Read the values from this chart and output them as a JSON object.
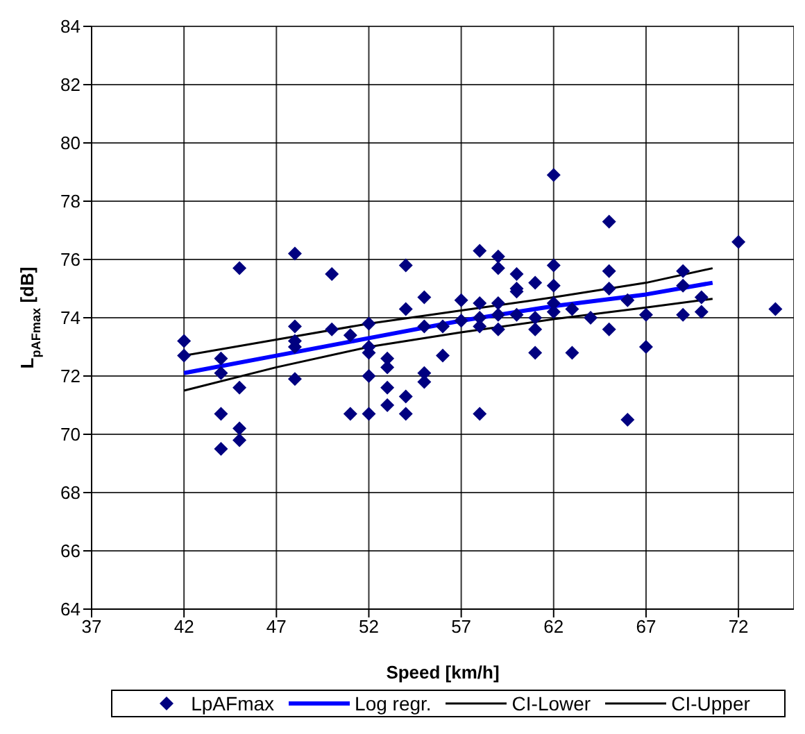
{
  "chart_data": {
    "type": "scatter",
    "xlabel": "Speed [km/h]",
    "ylabel": "L$_{pAFmax}$ [dB]",
    "xlim": [
      37,
      75
    ],
    "xticks": [
      37,
      42,
      47,
      52,
      57,
      62,
      67,
      72
    ],
    "ylim": [
      64,
      84
    ],
    "yticks": [
      64,
      66,
      68,
      70,
      72,
      74,
      76,
      78,
      80,
      82,
      84
    ],
    "grid": true,
    "legend": "bottom",
    "series": [
      {
        "name": "LpAFmax",
        "marker": "diamond",
        "color": "#000080",
        "x": [
          42,
          42,
          44,
          44,
          45,
          45,
          44,
          45,
          45,
          44,
          48,
          48,
          48,
          48,
          48,
          50,
          50,
          51,
          51,
          52,
          52,
          52,
          52,
          52,
          53,
          53,
          53,
          53,
          54,
          54,
          54,
          54,
          55,
          55,
          55,
          55,
          56,
          56,
          57,
          57,
          58,
          58,
          58,
          58,
          58,
          59,
          59,
          59,
          59,
          59,
          60,
          60,
          60,
          60,
          61,
          61,
          61,
          61,
          62,
          62,
          62,
          62,
          62,
          65,
          72,
          63,
          63,
          64,
          65,
          65,
          65,
          66,
          66,
          67,
          67,
          69,
          69,
          69,
          70,
          70,
          74
        ],
        "values": [
          73.2,
          72.7,
          72.6,
          72.1,
          75.7,
          71.6,
          70.7,
          70.2,
          69.8,
          69.5,
          76.2,
          73.7,
          73.2,
          73.0,
          71.9,
          75.5,
          73.6,
          73.4,
          70.7,
          73.8,
          73.0,
          72.8,
          72.0,
          70.7,
          72.6,
          72.3,
          71.6,
          71.0,
          75.8,
          74.3,
          71.3,
          70.7,
          74.7,
          73.7,
          72.1,
          71.8,
          73.7,
          72.7,
          74.6,
          73.9,
          76.3,
          74.5,
          74.0,
          73.7,
          70.7,
          76.1,
          75.7,
          74.5,
          74.1,
          73.6,
          75.5,
          75.0,
          74.9,
          74.1,
          75.2,
          74.0,
          73.6,
          72.8,
          78.9,
          75.8,
          75.1,
          74.5,
          74.2,
          77.3,
          76.6,
          74.3,
          72.8,
          74.0,
          75.6,
          75.0,
          73.6,
          74.6,
          70.5,
          74.1,
          73.0,
          75.6,
          75.1,
          74.1,
          74.7,
          74.2,
          74.3
        ]
      },
      {
        "name": "Log regr.",
        "type": "line",
        "color": "#0000ff",
        "x": [
          42,
          47,
          52,
          57,
          62,
          67,
          70.6
        ],
        "values": [
          72.1,
          72.7,
          73.3,
          73.9,
          74.4,
          74.8,
          75.2
        ]
      },
      {
        "name": "CI-Lower",
        "type": "line",
        "color": "#000000",
        "x": [
          42,
          47,
          52,
          57,
          62,
          67,
          70.6
        ],
        "values": [
          71.5,
          72.3,
          73.0,
          73.5,
          73.95,
          74.35,
          74.65
        ]
      },
      {
        "name": "CI-Upper",
        "type": "line",
        "color": "#000000",
        "x": [
          42,
          47,
          52,
          57,
          62,
          67,
          70.6
        ],
        "values": [
          72.7,
          73.25,
          73.8,
          74.25,
          74.7,
          75.2,
          75.7
        ]
      }
    ]
  }
}
